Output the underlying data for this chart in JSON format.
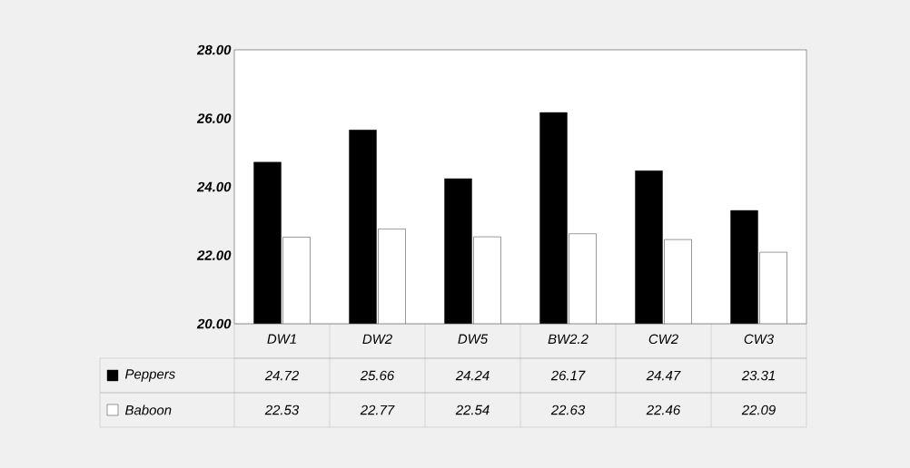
{
  "chart_data": {
    "type": "bar",
    "categories": [
      "DW1",
      "DW2",
      "DW5",
      "BW2.2",
      "CW2",
      "CW3"
    ],
    "series": [
      {
        "name": "Peppers",
        "color": "#000000",
        "values": [
          24.72,
          25.66,
          24.24,
          26.17,
          24.47,
          23.31
        ]
      },
      {
        "name": "Baboon",
        "color": "#ffffff",
        "values": [
          22.53,
          22.77,
          22.54,
          22.63,
          22.46,
          22.09
        ]
      }
    ],
    "ylim": [
      20,
      28
    ],
    "yticks": [
      {
        "value": 20,
        "label": "20.00"
      },
      {
        "value": 22,
        "label": "22.00"
      },
      {
        "value": 24,
        "label": "24.00"
      },
      {
        "value": 26,
        "label": "26.00"
      },
      {
        "value": 28,
        "label": "28.00"
      }
    ],
    "data_labels": true,
    "legend": "bottom",
    "grid": false
  }
}
